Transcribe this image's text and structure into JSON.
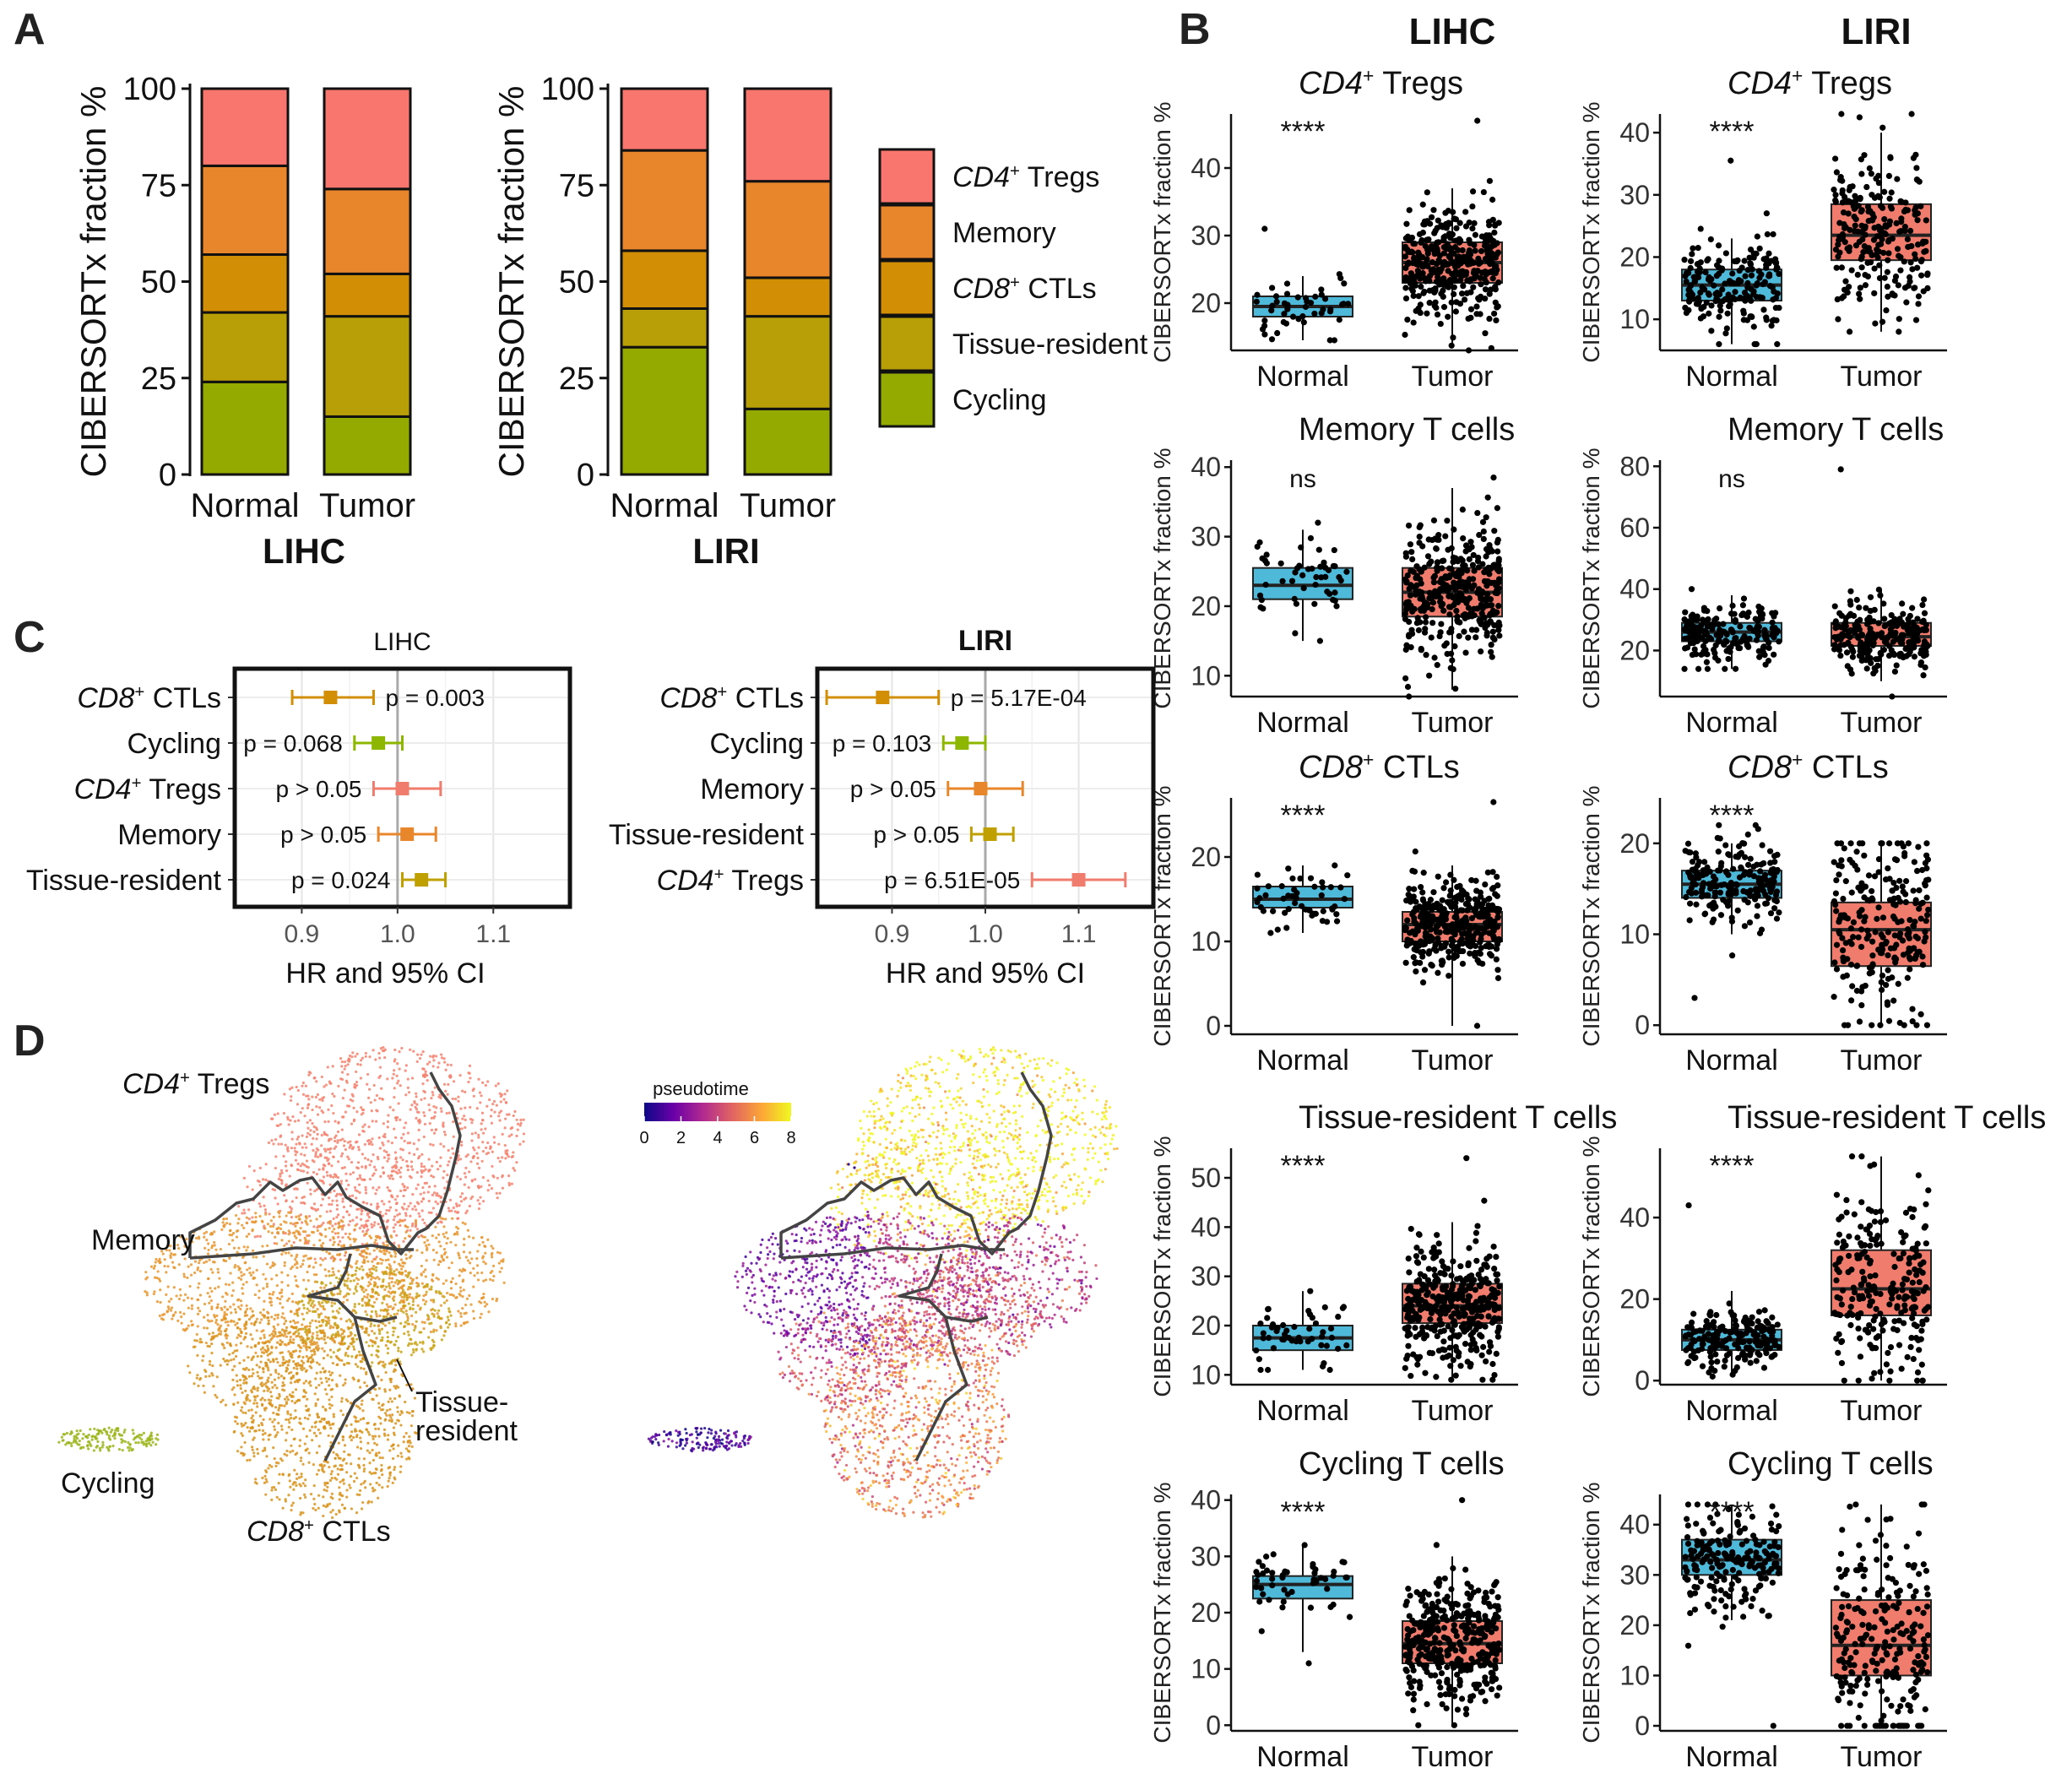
{
  "figure": {
    "panel_labels": [
      "A",
      "B",
      "C",
      "D"
    ],
    "b_headers": [
      "LIHC",
      "LIRI"
    ],
    "colors": {
      "tregs": "#F8766D",
      "memory": "#E8862B",
      "ctls": "#D28F05",
      "tissue": "#B89F08",
      "cycling": "#94AA00",
      "normal_box": "#4EB9D9",
      "tumor_box": "#F07C6E",
      "ci_ctls": "#D28F05",
      "ci_cycling": "#8DB600",
      "ci_tregs": "#F07C6E",
      "ci_memory": "#E8862B",
      "ci_tissue": "#C0A000"
    }
  },
  "chart_data": [
    {
      "id": "A-LIHC",
      "type": "bar",
      "stacked": true,
      "title": "LIHC",
      "ylabel": "CIBERSORTx fraction %",
      "xlabel": "LIHC",
      "categories": [
        "Normal",
        "Tumor"
      ],
      "ylim": [
        0,
        100
      ],
      "yticks": [
        0,
        25,
        50,
        75,
        100
      ],
      "series": [
        {
          "name": "Cycling",
          "values": [
            24,
            15
          ]
        },
        {
          "name": "Tissue-resident",
          "values": [
            18,
            26
          ]
        },
        {
          "name": "CD8+ CTLs",
          "values": [
            15,
            11
          ]
        },
        {
          "name": "Memory",
          "values": [
            23,
            22
          ]
        },
        {
          "name": "CD4+ Tregs",
          "values": [
            20,
            26
          ]
        }
      ]
    },
    {
      "id": "A-LIRI",
      "type": "bar",
      "stacked": true,
      "title": "LIRI",
      "ylabel": "CIBERSORTx fraction %",
      "xlabel": "LIRI",
      "categories": [
        "Normal",
        "Tumor"
      ],
      "ylim": [
        0,
        100
      ],
      "yticks": [
        0,
        25,
        50,
        75,
        100
      ],
      "series": [
        {
          "name": "Cycling",
          "values": [
            33,
            17
          ]
        },
        {
          "name": "Tissue-resident",
          "values": [
            10,
            24
          ]
        },
        {
          "name": "CD8+ CTLs",
          "values": [
            15,
            10
          ]
        },
        {
          "name": "Memory",
          "values": [
            26,
            25
          ]
        },
        {
          "name": "CD4+ Tregs",
          "values": [
            16,
            24
          ]
        }
      ]
    },
    {
      "id": "A-legend",
      "type": "legend",
      "items": [
        {
          "main": "CD4",
          "sup": "+",
          "rest": " Tregs",
          "italic": true
        },
        {
          "main": "Memory",
          "sup": "",
          "rest": "",
          "italic": false
        },
        {
          "main": "CD8",
          "sup": "+",
          "rest": " CTLs",
          "italic": true
        },
        {
          "main": "Tissue-resident",
          "sup": "",
          "rest": "",
          "italic": false
        },
        {
          "main": "Cycling",
          "sup": "",
          "rest": "",
          "italic": false
        }
      ]
    },
    {
      "id": "B",
      "type": "box",
      "ylabel": "CIBERSORTx fraction %",
      "categories": [
        "Normal",
        "Tumor"
      ],
      "panels": [
        {
          "id": "b-lihc-tregs",
          "title_main": "CD4",
          "title_sup": "+",
          "title_rest": " Tregs",
          "italic": true,
          "sig": "****",
          "ylim": [
            13,
            48
          ],
          "yticks": [
            20,
            30,
            40
          ],
          "normal": {
            "q1": 18,
            "median": 19.5,
            "q3": 21,
            "wlo": 14.5,
            "whi": 24,
            "min": 14.5,
            "max": 31,
            "n": 50
          },
          "tumor": {
            "q1": 23,
            "median": 26,
            "q3": 29,
            "wlo": 14,
            "whi": 37,
            "min": 13,
            "max": 47,
            "n": 370
          }
        },
        {
          "id": "b-liri-tregs",
          "title_main": "CD4",
          "title_sup": "+",
          "title_rest": " Tregs",
          "italic": true,
          "sig": "****",
          "ylim": [
            5,
            43
          ],
          "yticks": [
            10,
            20,
            30,
            40
          ],
          "normal": {
            "q1": 13,
            "median": 15.5,
            "q3": 18,
            "wlo": 6,
            "whi": 23,
            "min": 6,
            "max": 35.5,
            "n": 200
          },
          "tumor": {
            "q1": 19.5,
            "median": 23.5,
            "q3": 28.5,
            "wlo": 8,
            "whi": 40,
            "min": 8,
            "max": 43,
            "n": 240
          }
        },
        {
          "id": "b-lihc-memory",
          "title_main": "Memory T cells",
          "title_sup": "",
          "title_rest": "",
          "italic": false,
          "sig": "ns",
          "ylim": [
            7,
            41
          ],
          "yticks": [
            10,
            20,
            30,
            40
          ],
          "normal": {
            "q1": 21,
            "median": 23,
            "q3": 25.5,
            "wlo": 15,
            "whi": 31,
            "min": 15,
            "max": 32,
            "n": 50
          },
          "tumor": {
            "q1": 18.5,
            "median": 22,
            "q3": 25.5,
            "wlo": 8,
            "whi": 37,
            "min": 7,
            "max": 38.5,
            "n": 370
          }
        },
        {
          "id": "b-liri-memory",
          "title_main": "Memory T cells",
          "title_sup": "",
          "title_rest": "",
          "italic": false,
          "sig": "ns",
          "ylim": [
            5,
            82
          ],
          "yticks": [
            20,
            40,
            60,
            80
          ],
          "normal": {
            "q1": 23,
            "median": 26,
            "q3": 29,
            "wlo": 14,
            "whi": 38,
            "min": 14,
            "max": 40,
            "n": 200
          },
          "tumor": {
            "q1": 21.5,
            "median": 24.5,
            "q3": 29,
            "wlo": 10,
            "whi": 40,
            "min": 5,
            "max": 79,
            "n": 240
          }
        },
        {
          "id": "b-lihc-ctls",
          "title_main": "CD8",
          "title_sup": "+",
          "title_rest": " CTLs",
          "italic": true,
          "sig": "****",
          "ylim": [
            -1,
            27
          ],
          "yticks": [
            0,
            10,
            20
          ],
          "normal": {
            "q1": 14,
            "median": 15,
            "q3": 16.5,
            "wlo": 11,
            "whi": 19,
            "min": 11,
            "max": 19,
            "n": 50
          },
          "tumor": {
            "q1": 10,
            "median": 12,
            "q3": 13.5,
            "wlo": 0,
            "whi": 19,
            "min": 0,
            "max": 26.5,
            "n": 370
          }
        },
        {
          "id": "b-liri-ctls",
          "title_main": "CD8",
          "title_sup": "+",
          "title_rest": " CTLs",
          "italic": true,
          "sig": "****",
          "ylim": [
            -1,
            25
          ],
          "yticks": [
            0,
            10,
            20
          ],
          "normal": {
            "q1": 14,
            "median": 15.5,
            "q3": 17,
            "wlo": 10,
            "whi": 20,
            "min": 3,
            "max": 22,
            "n": 200
          },
          "tumor": {
            "q1": 6.5,
            "median": 10.5,
            "q3": 13.5,
            "wlo": 0,
            "whi": 20,
            "min": 0,
            "max": 20,
            "n": 240
          }
        },
        {
          "id": "b-lihc-tissue",
          "title_main": "Tissue-resident T cells",
          "title_sup": "",
          "title_rest": "",
          "italic": false,
          "sig": "****",
          "ylim": [
            8,
            56
          ],
          "yticks": [
            10,
            20,
            30,
            40,
            50
          ],
          "normal": {
            "q1": 15,
            "median": 17.5,
            "q3": 20,
            "wlo": 11,
            "whi": 27,
            "min": 11,
            "max": 27,
            "n": 50
          },
          "tumor": {
            "q1": 20.5,
            "median": 24,
            "q3": 28.5,
            "wlo": 9,
            "whi": 41,
            "min": 9,
            "max": 54,
            "n": 370
          }
        },
        {
          "id": "b-liri-tissue",
          "title_main": "Tissue-resident T cells",
          "title_sup": "",
          "title_rest": "",
          "italic": false,
          "sig": "****",
          "ylim": [
            -1,
            57
          ],
          "yticks": [
            0,
            20,
            40
          ],
          "normal": {
            "q1": 7.5,
            "median": 10,
            "q3": 12.5,
            "wlo": 1,
            "whi": 22,
            "min": 1,
            "max": 43,
            "n": 200
          },
          "tumor": {
            "q1": 16,
            "median": 22.5,
            "q3": 32,
            "wlo": 0,
            "whi": 55,
            "min": 0,
            "max": 55,
            "n": 240
          }
        },
        {
          "id": "b-lihc-cycling",
          "title_main": "Cycling T cells",
          "title_sup": "",
          "title_rest": "",
          "italic": false,
          "sig": "****",
          "ylim": [
            -1,
            41
          ],
          "yticks": [
            0,
            10,
            20,
            30,
            40
          ],
          "normal": {
            "q1": 22.5,
            "median": 25,
            "q3": 26.5,
            "wlo": 13,
            "whi": 32,
            "min": 11,
            "max": 32,
            "n": 50
          },
          "tumor": {
            "q1": 11,
            "median": 14.5,
            "q3": 18.5,
            "wlo": 0,
            "whi": 30,
            "min": 0,
            "max": 40,
            "n": 370
          }
        },
        {
          "id": "b-liri-cycling",
          "title_main": "Cycling T cells",
          "title_sup": "",
          "title_rest": "",
          "italic": false,
          "sig": "****",
          "ylim": [
            -1,
            46
          ],
          "yticks": [
            0,
            10,
            20,
            30,
            40
          ],
          "normal": {
            "q1": 30,
            "median": 33,
            "q3": 37,
            "wlo": 21,
            "whi": 44,
            "min": 0,
            "max": 44,
            "n": 200
          },
          "tumor": {
            "q1": 10,
            "median": 16,
            "q3": 25,
            "wlo": 0,
            "whi": 44,
            "min": 0,
            "max": 44,
            "n": 240
          }
        }
      ]
    },
    {
      "id": "C-LIHC",
      "type": "scatter",
      "subtype": "forest",
      "title": "LIHC",
      "xlabel": "HR and 95% CI",
      "xlim": [
        0.83,
        1.18
      ],
      "xticks": [
        0.9,
        1.0,
        1.1
      ],
      "xtick_labels": [
        "0.9",
        "1.0",
        "1.1"
      ],
      "rows": [
        {
          "main": "CD8",
          "sup": "+",
          "rest": " CTLs",
          "italic": true,
          "hr": 0.93,
          "lo": 0.89,
          "hi": 0.975,
          "p": "p = 0.003",
          "color_key": "ci_ctls"
        },
        {
          "main": "Cycling",
          "sup": "",
          "rest": "",
          "italic": false,
          "hr": 0.98,
          "lo": 0.955,
          "hi": 1.005,
          "p": "p = 0.068",
          "color_key": "ci_cycling"
        },
        {
          "main": "CD4",
          "sup": "+",
          "rest": " Tregs",
          "italic": true,
          "hr": 1.005,
          "lo": 0.975,
          "hi": 1.045,
          "p": "p > 0.05",
          "color_key": "ci_tregs"
        },
        {
          "main": "Memory",
          "sup": "",
          "rest": "",
          "italic": false,
          "hr": 1.01,
          "lo": 0.98,
          "hi": 1.04,
          "p": "p > 0.05",
          "color_key": "ci_memory"
        },
        {
          "main": "Tissue-resident",
          "sup": "",
          "rest": "",
          "italic": false,
          "hr": 1.025,
          "lo": 1.005,
          "hi": 1.05,
          "p": "p = 0.024",
          "color_key": "ci_tissue"
        }
      ]
    },
    {
      "id": "C-LIRI",
      "type": "scatter",
      "subtype": "forest",
      "title": "LIRI",
      "xlabel": "HR and 95% CI",
      "xlim": [
        0.82,
        1.18
      ],
      "xticks": [
        0.9,
        1.0,
        1.1
      ],
      "xtick_labels": [
        "0.9",
        "1.0",
        "1.1"
      ],
      "rows": [
        {
          "main": "CD8",
          "sup": "+",
          "rest": " CTLs",
          "italic": true,
          "hr": 0.89,
          "lo": 0.83,
          "hi": 0.95,
          "p": "p = 5.17E-04",
          "color_key": "ci_ctls"
        },
        {
          "main": "Cycling",
          "sup": "",
          "rest": "",
          "italic": false,
          "hr": 0.975,
          "lo": 0.955,
          "hi": 1.0,
          "p": "p = 0.103",
          "color_key": "ci_cycling"
        },
        {
          "main": "Memory",
          "sup": "",
          "rest": "",
          "italic": false,
          "hr": 0.995,
          "lo": 0.96,
          "hi": 1.04,
          "p": "p > 0.05",
          "color_key": "ci_memory"
        },
        {
          "main": "Tissue-resident",
          "sup": "",
          "rest": "",
          "italic": false,
          "hr": 1.005,
          "lo": 0.985,
          "hi": 1.03,
          "p": "p > 0.05",
          "color_key": "ci_tissue"
        },
        {
          "main": "CD4",
          "sup": "+",
          "rest": " Tregs",
          "italic": true,
          "hr": 1.1,
          "lo": 1.05,
          "hi": 1.15,
          "p": "p = 6.51E-05",
          "color_key": "ci_tregs"
        }
      ]
    },
    {
      "id": "D",
      "type": "scatter",
      "subtype": "embedding",
      "cluster_labels": [
        {
          "key": "tregs",
          "main": "CD4",
          "sup": "+",
          "rest": " Tregs",
          "italic": true
        },
        {
          "key": "memory",
          "main": "Memory",
          "sup": "",
          "rest": "",
          "italic": false
        },
        {
          "key": "tissue1",
          "main": "Tissue-",
          "sup": "",
          "rest": "",
          "italic": false
        },
        {
          "key": "tissue2",
          "main": "resident",
          "sup": "",
          "rest": "",
          "italic": false
        },
        {
          "key": "cycling",
          "main": "Cycling",
          "sup": "",
          "rest": "",
          "italic": false
        },
        {
          "key": "ctls",
          "main": "CD8",
          "sup": "+",
          "rest": " CTLs",
          "italic": true
        }
      ],
      "colorbar": {
        "title": "pseudotime",
        "range": [
          0,
          8
        ],
        "ticks": [
          0,
          2,
          4,
          6,
          8
        ],
        "stops": [
          "#0D0887",
          "#6A00A8",
          "#B12A90",
          "#E16462",
          "#FCA636",
          "#F0F921"
        ]
      }
    }
  ]
}
